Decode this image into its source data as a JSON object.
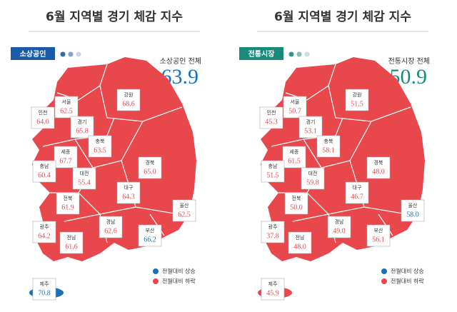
{
  "panels": [
    {
      "title": "6월 지역별 경기 체감 지수",
      "badge": "소상공인",
      "badge_color": "#1a5aa6",
      "total_label": "소상공인 전체",
      "total_value": "63.9",
      "total_color": "#1a72b8",
      "regions": [
        {
          "name": "서울",
          "value": "62.5",
          "color": "#e8474c"
        },
        {
          "name": "인천",
          "value": "64.0",
          "color": "#e8474c"
        },
        {
          "name": "경기",
          "value": "65.8",
          "color": "#e8474c"
        },
        {
          "name": "강원",
          "value": "68.6",
          "color": "#e8474c"
        },
        {
          "name": "충북",
          "value": "63.5",
          "color": "#e8474c"
        },
        {
          "name": "세종",
          "value": "67.7",
          "color": "#e8474c"
        },
        {
          "name": "충남",
          "value": "60.4",
          "color": "#e8474c"
        },
        {
          "name": "대전",
          "value": "55.4",
          "color": "#e8474c"
        },
        {
          "name": "경북",
          "value": "65.0",
          "color": "#e8474c"
        },
        {
          "name": "대구",
          "value": "64.3",
          "color": "#e8474c"
        },
        {
          "name": "전북",
          "value": "61.9",
          "color": "#e8474c"
        },
        {
          "name": "울산",
          "value": "62.5",
          "color": "#e8474c"
        },
        {
          "name": "광주",
          "value": "64.2",
          "color": "#e8474c"
        },
        {
          "name": "경남",
          "value": "62.6",
          "color": "#e8474c"
        },
        {
          "name": "부산",
          "value": "66.2",
          "color": "#1a72b8"
        },
        {
          "name": "전남",
          "value": "61.6",
          "color": "#e8474c"
        },
        {
          "name": "제주",
          "value": "70.8",
          "color": "#1a72b8"
        }
      ],
      "legend": [
        {
          "label": "전월대비 상승",
          "color": "#1a72b8"
        },
        {
          "label": "전월대비 하락",
          "color": "#e8474c"
        }
      ]
    },
    {
      "title": "6월 지역별 경기 체감 지수",
      "badge": "전통시장",
      "badge_color": "#1b8a7a",
      "total_label": "전통시장 전체",
      "total_value": "50.9",
      "total_color": "#1b8a7a",
      "regions": [
        {
          "name": "서울",
          "value": "50.7",
          "color": "#e8474c"
        },
        {
          "name": "인천",
          "value": "45.3",
          "color": "#e8474c"
        },
        {
          "name": "경기",
          "value": "53.1",
          "color": "#e8474c"
        },
        {
          "name": "강원",
          "value": "51.5",
          "color": "#e8474c"
        },
        {
          "name": "충북",
          "value": "58.1",
          "color": "#e8474c"
        },
        {
          "name": "세종",
          "value": "61.5",
          "color": "#e8474c"
        },
        {
          "name": "충남",
          "value": "51.5",
          "color": "#e8474c"
        },
        {
          "name": "대전",
          "value": "59.8",
          "color": "#e8474c"
        },
        {
          "name": "경북",
          "value": "48.0",
          "color": "#e8474c"
        },
        {
          "name": "대구",
          "value": "46.7",
          "color": "#e8474c"
        },
        {
          "name": "전북",
          "value": "50.0",
          "color": "#e8474c"
        },
        {
          "name": "울산",
          "value": "58.0",
          "color": "#1a72b8"
        },
        {
          "name": "광주",
          "value": "37.8",
          "color": "#e8474c"
        },
        {
          "name": "경남",
          "value": "49.0",
          "color": "#e8474c"
        },
        {
          "name": "부산",
          "value": "56.1",
          "color": "#e8474c"
        },
        {
          "name": "전남",
          "value": "48.0",
          "color": "#e8474c"
        },
        {
          "name": "제주",
          "value": "45.9",
          "color": "#e8474c"
        }
      ],
      "legend": [
        {
          "label": "전월대비 상승",
          "color": "#1a72b8"
        },
        {
          "label": "전월대비 하락",
          "color": "#e8474c"
        }
      ]
    }
  ]
}
